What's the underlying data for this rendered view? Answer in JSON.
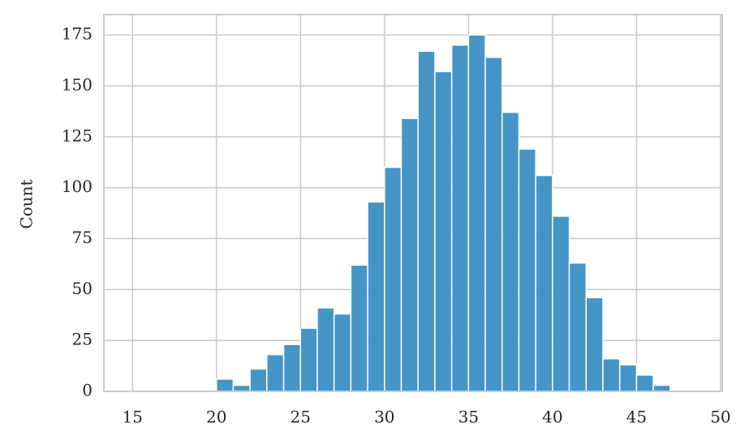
{
  "chart_data": {
    "type": "histogram",
    "y_label": "Count",
    "bins": [
      14,
      15,
      16,
      17,
      18,
      19,
      20,
      21,
      22,
      23,
      24,
      25,
      26,
      27,
      28,
      29,
      30,
      31,
      32,
      33,
      34,
      35,
      36,
      37,
      38,
      39,
      40,
      41,
      42,
      43,
      44,
      45,
      46,
      47,
      48,
      49,
      50
    ],
    "counts": [
      0,
      0,
      0,
      0,
      0,
      0,
      6,
      3,
      11,
      18,
      23,
      31,
      41,
      38,
      62,
      93,
      110,
      134,
      167,
      157,
      170,
      175,
      164,
      137,
      119,
      106,
      86,
      63,
      46,
      16,
      13,
      8,
      3,
      0,
      0,
      0
    ],
    "color": "#3b8fc4",
    "xlim": [
      13.3,
      50.1
    ],
    "xticks": [
      15,
      20,
      25,
      30,
      35,
      40,
      45,
      50
    ],
    "ylim": [
      0,
      185
    ],
    "yticks": [
      0,
      25,
      50,
      75,
      100,
      125,
      150,
      175
    ],
    "grid": true
  }
}
